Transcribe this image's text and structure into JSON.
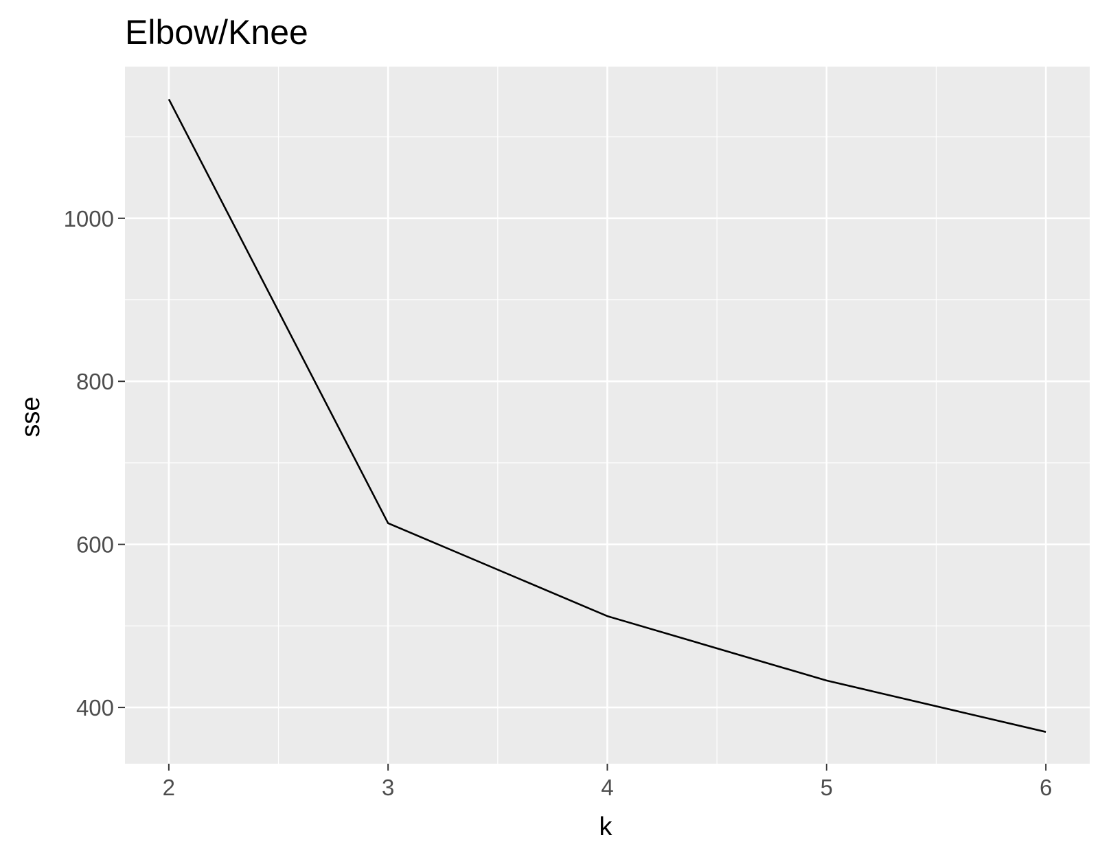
{
  "chart_data": {
    "type": "line",
    "title": "Elbow/Knee",
    "xlabel": "k",
    "ylabel": "sse",
    "x": [
      2,
      3,
      4,
      5,
      6
    ],
    "series": [
      {
        "values": [
          1146,
          626,
          512,
          433,
          370
        ]
      }
    ],
    "xlim": [
      1.8,
      6.2
    ],
    "ylim": [
      331,
      1186
    ],
    "x_ticks": [
      2,
      3,
      4,
      5,
      6
    ],
    "x_tick_labels": [
      "2",
      "3",
      "4",
      "5",
      "6"
    ],
    "y_ticks": [
      400,
      600,
      800,
      1000
    ],
    "y_tick_labels": [
      "400",
      "600",
      "800",
      "1000"
    ],
    "x_minor_ticks": [
      2.5,
      3.5,
      4.5,
      5.5
    ],
    "y_minor_ticks": [
      500,
      700,
      900,
      1100
    ],
    "grid": true,
    "legend": "none",
    "colors": {
      "panel_background": "#EBEBEB",
      "gridline": "#FFFFFF",
      "line": "#000000",
      "tick_text": "#4D4D4D",
      "tick_mark": "#333333"
    }
  }
}
